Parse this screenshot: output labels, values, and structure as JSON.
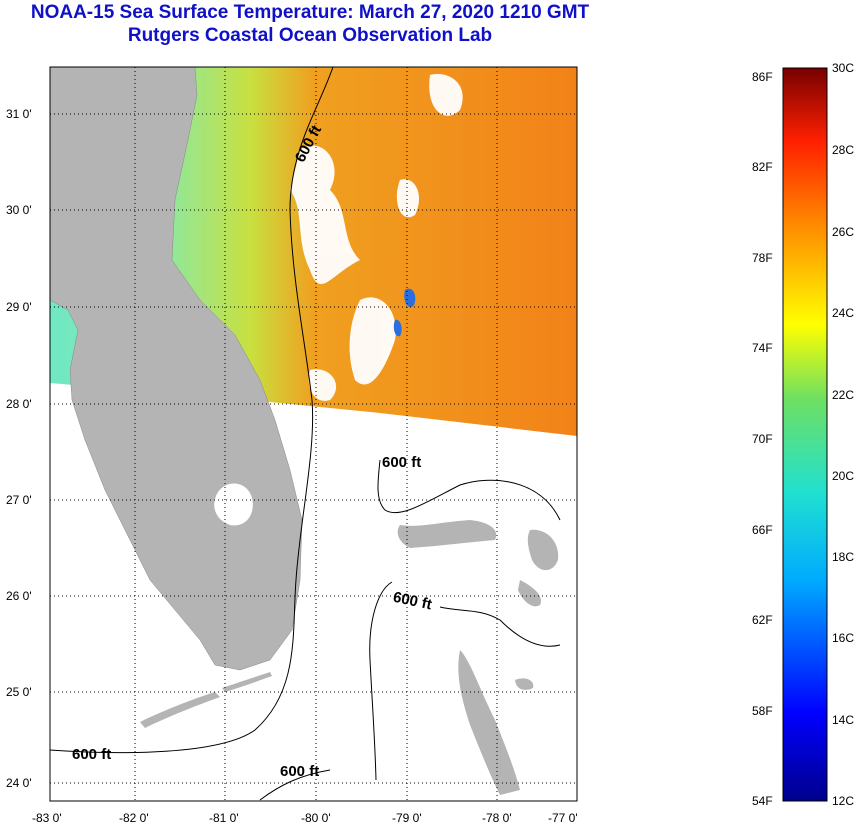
{
  "title_line1": "NOAA-15 Sea Surface Temperature:  March 27, 2020 1210 GMT",
  "title_line2": "Rutgers Coastal Ocean Observation Lab",
  "map": {
    "longitudes": [
      "-83 0'",
      "-82 0'",
      "-81 0'",
      "-80 0'",
      "-79 0'",
      "-78 0'",
      "-77 0'"
    ],
    "latitudes": [
      "31 0'",
      "30 0'",
      "29 0'",
      "28 0'",
      "27 0'",
      "26 0'",
      "25 0'",
      "24 0'"
    ],
    "contour_labels": [
      "600 ft",
      "600 ft",
      "600 ft",
      "600 ft",
      "600 ft"
    ],
    "colors": {
      "land": "#b4b4b4",
      "no_data": "#ffffff",
      "warm": "#f2861a",
      "cool": "#64e6c8"
    }
  },
  "colorbar": {
    "fahrenheit_labels": [
      "86F",
      "82F",
      "78F",
      "74F",
      "70F",
      "66F",
      "62F",
      "58F",
      "54F"
    ],
    "celsius_labels": [
      "30C",
      "28C",
      "26C",
      "24C",
      "22C",
      "20C",
      "18C",
      "16C",
      "14C",
      "12C"
    ]
  }
}
